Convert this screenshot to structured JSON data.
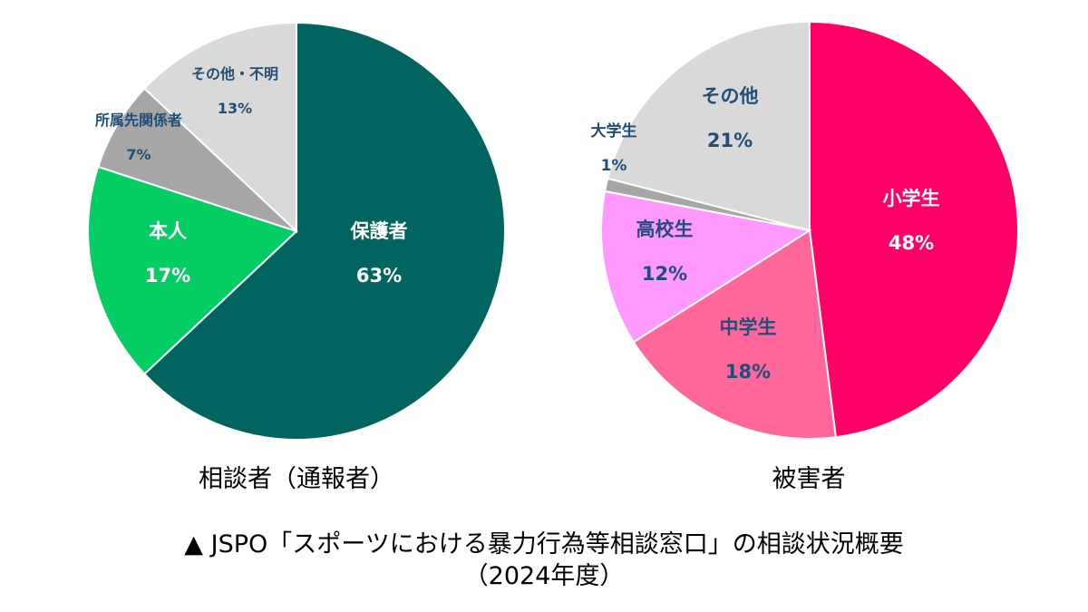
{
  "chart_data": [
    {
      "type": "pie",
      "title": "相談者（通報者）",
      "slices": [
        {
          "label": "保護者",
          "value": 63,
          "value_text": "63%",
          "color": "#02645F",
          "text_color": "#FFFFFF"
        },
        {
          "label": "本人",
          "value": 17,
          "value_text": "17%",
          "color": "#04CD64",
          "text_color": "#FFFFFF"
        },
        {
          "label": "所属先関係者",
          "value": 7,
          "value_text": "7%",
          "color": "#A6A6A6",
          "text_color": "#1F4E79"
        },
        {
          "label": "その他・不明",
          "value": 13,
          "value_text": "13%",
          "color": "#D9D9D9",
          "text_color": "#1F4E79"
        }
      ]
    },
    {
      "type": "pie",
      "title": "被害者",
      "slices": [
        {
          "label": "小学生",
          "value": 48,
          "value_text": "48%",
          "color": "#FF0066",
          "text_color": "#FFFFFF"
        },
        {
          "label": "中学生",
          "value": 18,
          "value_text": "18%",
          "color": "#FF6699",
          "text_color": "#1F4E79"
        },
        {
          "label": "高校生",
          "value": 12,
          "value_text": "12%",
          "color": "#FF99FF",
          "text_color": "#1F4E79"
        },
        {
          "label": "大学生",
          "value": 1,
          "value_text": "1%",
          "color": "#A6A6A6",
          "text_color": "#1F4E79"
        },
        {
          "label": "その他",
          "value": 21,
          "value_text": "21%",
          "color": "#D9D9D9",
          "text_color": "#1F4E79"
        }
      ]
    }
  ],
  "caption": {
    "line1": "▲ JSPO「スポーツにおける暴力行為等相談窓口」の相談状況概要",
    "line2": "（2024年度）"
  }
}
